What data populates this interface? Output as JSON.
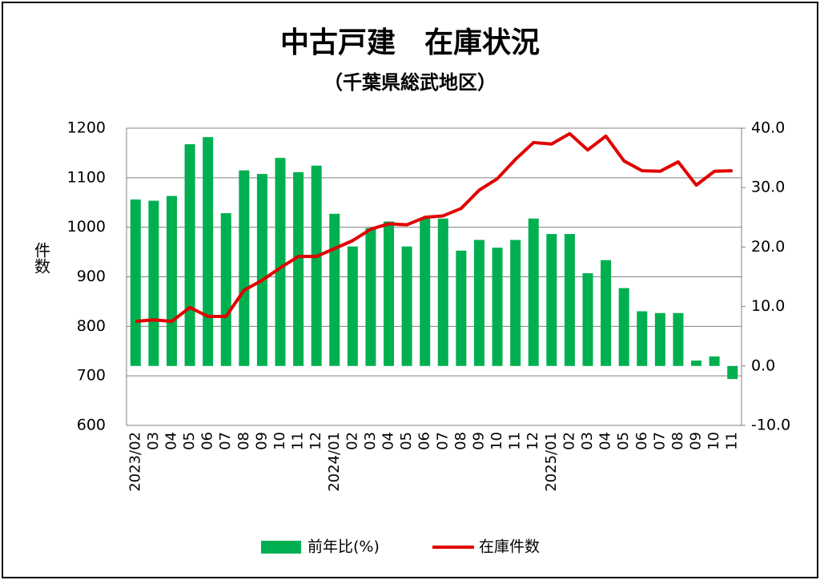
{
  "chart_data": {
    "type": "bar-line",
    "title": "中古戸建　在庫状況",
    "subtitle": "（千葉県総武地区）",
    "y_label": "件数",
    "categories": [
      "2023/02",
      "03",
      "04",
      "05",
      "06",
      "07",
      "08",
      "09",
      "10",
      "11",
      "12",
      "2024/01",
      "02",
      "03",
      "04",
      "05",
      "06",
      "07",
      "08",
      "09",
      "10",
      "11",
      "12",
      "2025/01",
      "02",
      "03",
      "04",
      "05",
      "06",
      "07",
      "08",
      "09",
      "10",
      "11"
    ],
    "series": [
      {
        "name": "前年比(%)",
        "type": "bar",
        "axis": "y2",
        "color": "#00b050",
        "values": [
          28.0,
          27.8,
          28.6,
          37.3,
          38.5,
          25.7,
          32.9,
          32.3,
          35.0,
          32.6,
          33.7,
          25.6,
          20.1,
          23.2,
          24.3,
          20.1,
          24.8,
          24.8,
          19.4,
          21.2,
          19.9,
          21.2,
          24.8,
          22.2,
          22.2,
          15.6,
          17.8,
          13.1,
          9.2,
          8.9,
          8.9,
          0.9,
          1.6,
          -2.2
        ]
      },
      {
        "name": "在庫件数",
        "type": "line",
        "axis": "y",
        "color": "#e00000",
        "values": [
          810,
          813,
          810,
          838,
          820,
          820,
          873,
          893,
          918,
          941,
          941,
          957,
          973,
          996,
          1007,
          1005,
          1020,
          1023,
          1038,
          1075,
          1098,
          1137,
          1171,
          1168,
          1189,
          1156,
          1184,
          1134,
          1114,
          1113,
          1132,
          1085,
          1113,
          1114
        ]
      }
    ],
    "ylim": [
      600,
      1200
    ],
    "yticks": [
      600,
      700,
      800,
      900,
      1000,
      1100,
      1200
    ],
    "y2lim": [
      -10,
      40
    ],
    "y2ticks": [
      {
        "value": -10,
        "label": "-10.0"
      },
      {
        "value": 0,
        "label": "0.0"
      },
      {
        "value": 10,
        "label": "10.0"
      },
      {
        "value": 20,
        "label": "20.0"
      },
      {
        "value": 30,
        "label": "30.0"
      },
      {
        "value": 40,
        "label": "40.0"
      }
    ],
    "negative_tick_color": "#ff0000",
    "grid": true,
    "legend": "bottom"
  }
}
